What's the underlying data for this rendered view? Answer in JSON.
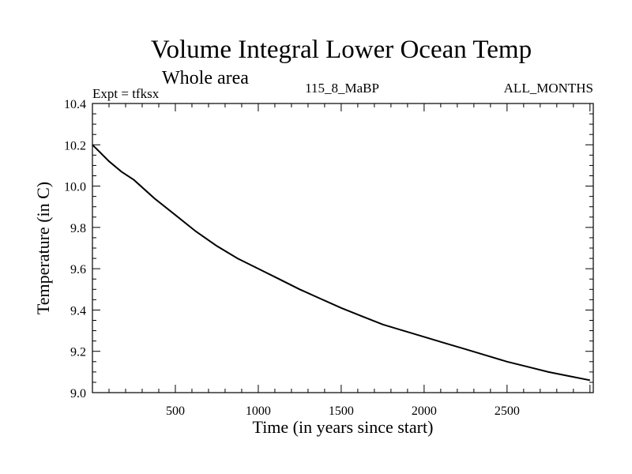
{
  "chart_data": {
    "type": "line",
    "title": "Volume Integral Lower Ocean Temp",
    "subtitle": "Whole area",
    "annotations": {
      "left": "Expt = tfksx",
      "center": "115_8_MaBP",
      "right": "ALL_MONTHS"
    },
    "xlabel": "Time (in years since start)",
    "ylabel": "Temperature (in C)",
    "xlim": [
      0,
      3020
    ],
    "ylim": [
      9.0,
      10.4
    ],
    "xticks": [
      500,
      1000,
      1500,
      2000,
      2500
    ],
    "yticks": [
      "9.0",
      "9.2",
      "9.4",
      "9.6",
      "9.8",
      "10.0",
      "10.2",
      "10.4"
    ],
    "grid": false,
    "series": [
      {
        "name": "Volume Integral Lower Ocean Temp",
        "color": "#000000",
        "x": [
          0,
          50,
          100,
          175,
          250,
          375,
          500,
          625,
          750,
          875,
          1000,
          1125,
          1250,
          1375,
          1500,
          1625,
          1750,
          1875,
          2000,
          2125,
          2250,
          2375,
          2500,
          2625,
          2750,
          2875,
          3000
        ],
        "y": [
          10.2,
          10.16,
          10.12,
          10.07,
          10.03,
          9.94,
          9.86,
          9.78,
          9.71,
          9.65,
          9.6,
          9.55,
          9.5,
          9.455,
          9.41,
          9.37,
          9.33,
          9.3,
          9.27,
          9.24,
          9.21,
          9.18,
          9.15,
          9.125,
          9.1,
          9.08,
          9.06
        ]
      }
    ]
  }
}
